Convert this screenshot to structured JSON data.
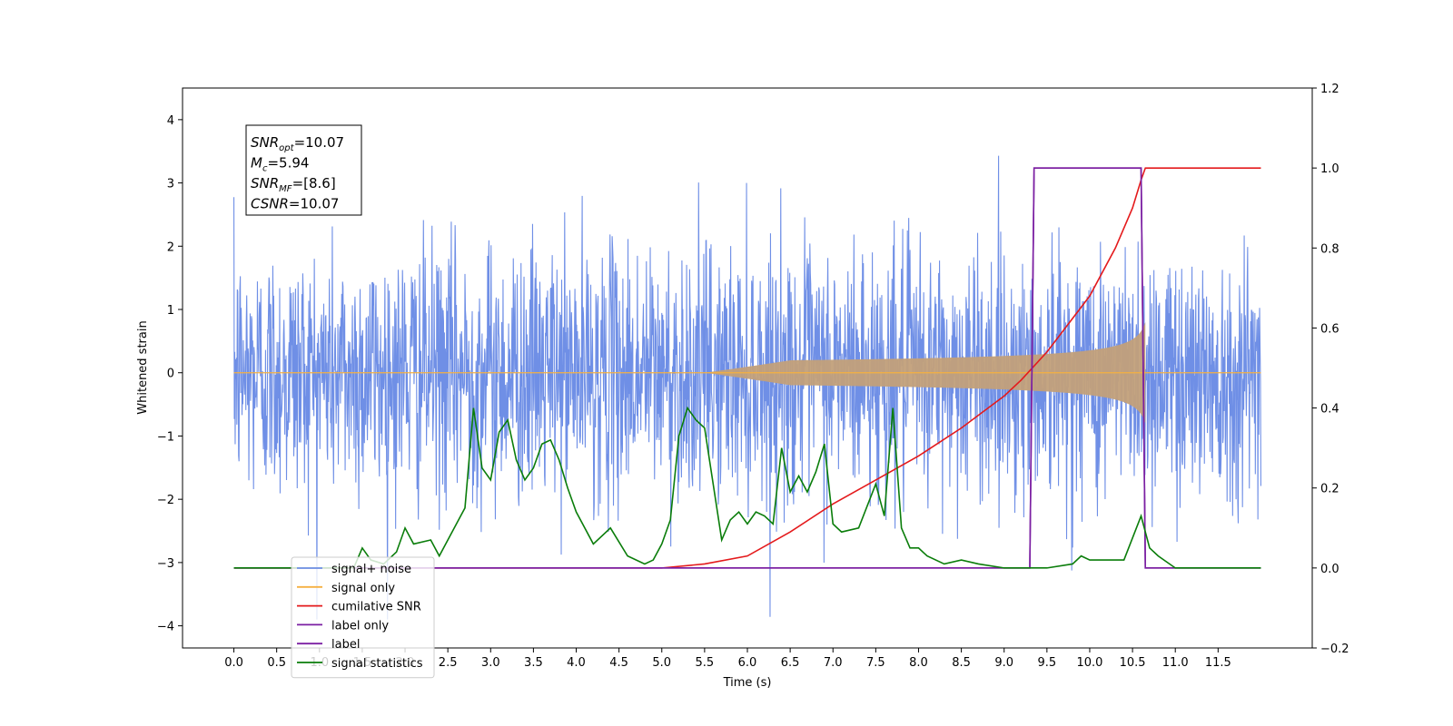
{
  "chart_data": {
    "type": "line",
    "title": "",
    "xlabel": "Time (s)",
    "ylabel": "Whitened strain",
    "y2label": "",
    "xlim": [
      -0.6,
      12.6
    ],
    "ylim": [
      -4.35,
      4.5
    ],
    "y2lim": [
      -0.2,
      1.2
    ],
    "x_ticks": [
      "0.0",
      "0.5",
      "1.0",
      "1.5",
      "2.0",
      "2.5",
      "3.0",
      "3.5",
      "4.0",
      "4.5",
      "5.0",
      "5.5",
      "6.0",
      "6.5",
      "7.0",
      "7.5",
      "8.0",
      "8.5",
      "9.0",
      "9.5",
      "10.0",
      "10.5",
      "11.0",
      "11.5"
    ],
    "y_ticks": [
      "4",
      "3",
      "2",
      "1",
      "0",
      "−1",
      "−2",
      "−3",
      "−4"
    ],
    "y2_ticks": [
      "1.2",
      "1.0",
      "0.8",
      "0.6",
      "0.4",
      "0.2",
      "0.0",
      "−0.2"
    ],
    "grid": false,
    "legend_position": "lower-left",
    "annotation": [
      {
        "base": "SNR",
        "sub": "opt",
        "value": "=10.07"
      },
      {
        "base": "M",
        "sub": "c",
        "value": "=5.94"
      },
      {
        "base": "SNR",
        "sub": "MF",
        "value": "=[8.6]"
      },
      {
        "base": "CSNR",
        "sub": "",
        "value": "=10.07"
      }
    ],
    "series": [
      {
        "name": "signal+ noise",
        "axis": "left",
        "color": "#6f8fe6",
        "description_kind": "noise",
        "x_range": [
          0.0,
          12.0
        ],
        "amplitude_std": 1.0
      },
      {
        "name": "signal only",
        "axis": "left",
        "color": "#f5b041",
        "description_kind": "chirp",
        "x_range": [
          0.0,
          12.0
        ],
        "merger_time": 10.65,
        "peak_amplitude": 0.8
      },
      {
        "name": "cumilative SNR",
        "axis": "right",
        "color": "#e41a1c",
        "x": [
          0.0,
          5.0,
          5.5,
          6.0,
          6.5,
          7.0,
          7.5,
          8.0,
          8.5,
          9.0,
          9.2,
          9.5,
          10.0,
          10.3,
          10.5,
          10.6,
          10.65,
          12.0
        ],
        "y": [
          0.0,
          0.0,
          0.01,
          0.03,
          0.09,
          0.16,
          0.22,
          0.28,
          0.35,
          0.43,
          0.47,
          0.54,
          0.68,
          0.8,
          0.9,
          0.97,
          1.0,
          1.0
        ]
      },
      {
        "name": "label only",
        "axis": "right",
        "color": "#7b1fa2",
        "x": [
          0.0,
          9.3,
          9.35,
          10.6,
          10.65,
          12.0
        ],
        "y": [
          0.0,
          0.0,
          1.0,
          1.0,
          0.0,
          0.0
        ]
      },
      {
        "name": "label",
        "axis": "right",
        "color": "#7b1fa2",
        "x": [
          0.0,
          9.3,
          9.35,
          10.6,
          10.65,
          12.0
        ],
        "y": [
          0.0,
          0.0,
          1.0,
          1.0,
          0.0,
          0.0
        ]
      },
      {
        "name": "signal statistics",
        "axis": "right",
        "color": "#0a7d0a",
        "x": [
          0.0,
          1.4,
          1.5,
          1.6,
          1.75,
          1.9,
          2.0,
          2.1,
          2.3,
          2.4,
          2.5,
          2.7,
          2.8,
          2.9,
          3.0,
          3.1,
          3.2,
          3.3,
          3.4,
          3.5,
          3.6,
          3.7,
          3.8,
          3.9,
          4.0,
          4.2,
          4.4,
          4.6,
          4.8,
          4.9,
          5.0,
          5.1,
          5.2,
          5.3,
          5.4,
          5.5,
          5.7,
          5.8,
          5.9,
          6.0,
          6.1,
          6.2,
          6.3,
          6.4,
          6.5,
          6.6,
          6.7,
          6.8,
          6.9,
          7.0,
          7.1,
          7.3,
          7.5,
          7.6,
          7.7,
          7.8,
          7.9,
          8.0,
          8.1,
          8.3,
          8.5,
          8.7,
          9.0,
          9.3,
          9.5,
          9.8,
          9.9,
          10.0,
          10.2,
          10.4,
          10.6,
          10.7,
          10.8,
          11.0,
          11.5,
          12.0
        ],
        "y": [
          0.0,
          0.0,
          0.05,
          0.02,
          0.01,
          0.04,
          0.1,
          0.06,
          0.07,
          0.03,
          0.07,
          0.15,
          0.4,
          0.25,
          0.22,
          0.34,
          0.37,
          0.27,
          0.22,
          0.25,
          0.31,
          0.32,
          0.27,
          0.2,
          0.14,
          0.06,
          0.1,
          0.03,
          0.01,
          0.02,
          0.06,
          0.12,
          0.33,
          0.4,
          0.37,
          0.35,
          0.07,
          0.12,
          0.14,
          0.11,
          0.14,
          0.13,
          0.11,
          0.3,
          0.19,
          0.23,
          0.19,
          0.24,
          0.31,
          0.11,
          0.09,
          0.1,
          0.21,
          0.13,
          0.4,
          0.1,
          0.05,
          0.05,
          0.03,
          0.01,
          0.02,
          0.01,
          0.0,
          0.0,
          0.0,
          0.01,
          0.03,
          0.02,
          0.02,
          0.02,
          0.13,
          0.05,
          0.03,
          0.0,
          0.0,
          0.0
        ]
      }
    ],
    "legend": [
      "signal+ noise",
      "signal only",
      "cumilative SNR",
      "label only",
      "label",
      "signal statistics"
    ]
  }
}
